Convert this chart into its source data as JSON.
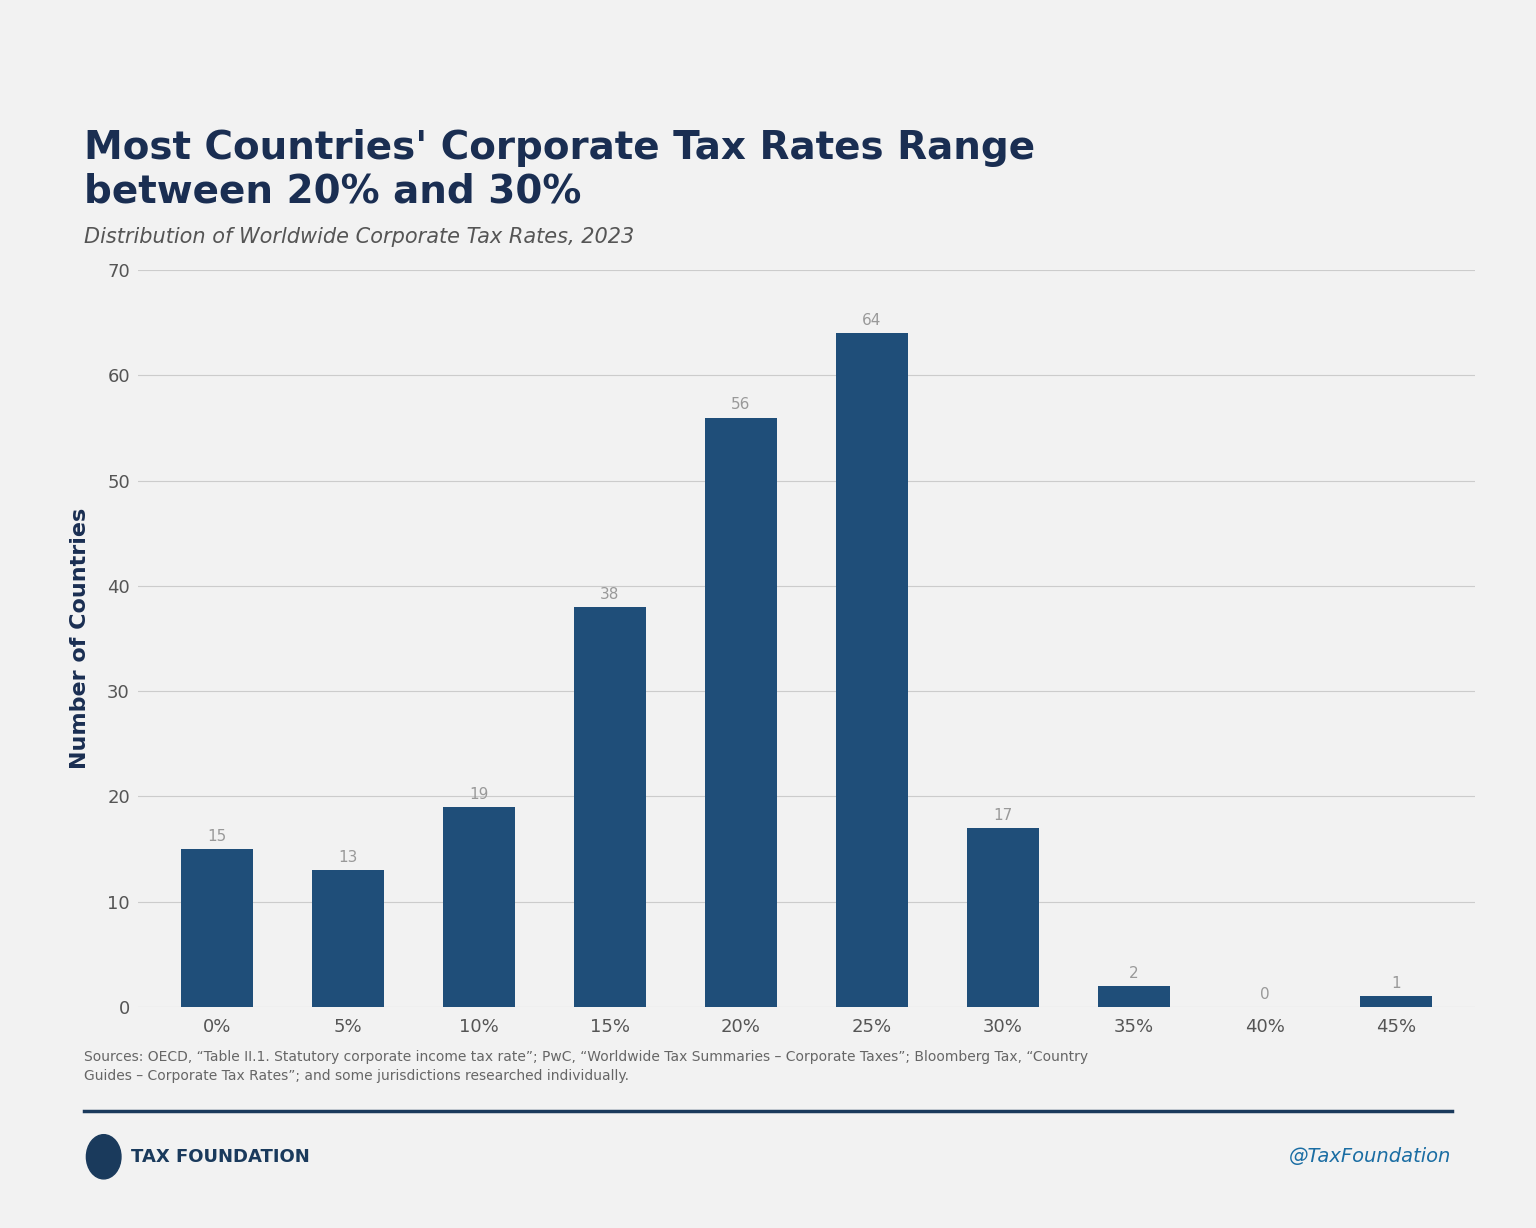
{
  "title": "Most Countries' Corporate Tax Rates Range\nbetween 20% and 30%",
  "subtitle": "Distribution of Worldwide Corporate Tax Rates, 2023",
  "categories": [
    "0%",
    "5%",
    "10%",
    "15%",
    "20%",
    "25%",
    "30%",
    "35%",
    "40%",
    "45%"
  ],
  "values": [
    15,
    13,
    19,
    38,
    56,
    64,
    17,
    2,
    0,
    1
  ],
  "bar_color": "#1f4e79",
  "ylabel": "Number of Countries",
  "ylim": [
    0,
    70
  ],
  "yticks": [
    0,
    10,
    20,
    30,
    40,
    50,
    60,
    70
  ],
  "background_color": "#f2f2f2",
  "grid_color": "#cccccc",
  "bar_label_color": "#999999",
  "bar_label_fontsize": 11,
  "title_color": "#1a2e52",
  "title_fontsize": 28,
  "subtitle_color": "#555555",
  "subtitle_fontsize": 15,
  "ylabel_color": "#1a2e52",
  "ylabel_fontsize": 16,
  "tick_label_fontsize": 13,
  "tick_label_color": "#555555",
  "source_text": "Sources: OECD, “Table II.1. Statutory corporate income tax rate”; PwC, “Worldwide Tax Summaries – Corporate Taxes”; Bloomberg Tax, “Country\nGuides – Corporate Tax Rates”; and some jurisdictions researched individually.",
  "source_fontsize": 10,
  "source_color": "#666666",
  "footer_line_color": "#1a3a5c",
  "brand_text": "TAX FOUNDATION",
  "brand_color": "#1a3a5c",
  "brand_fontsize": 13,
  "twitter_text": "@TaxFoundation",
  "twitter_color": "#1a6da3",
  "twitter_fontsize": 14
}
